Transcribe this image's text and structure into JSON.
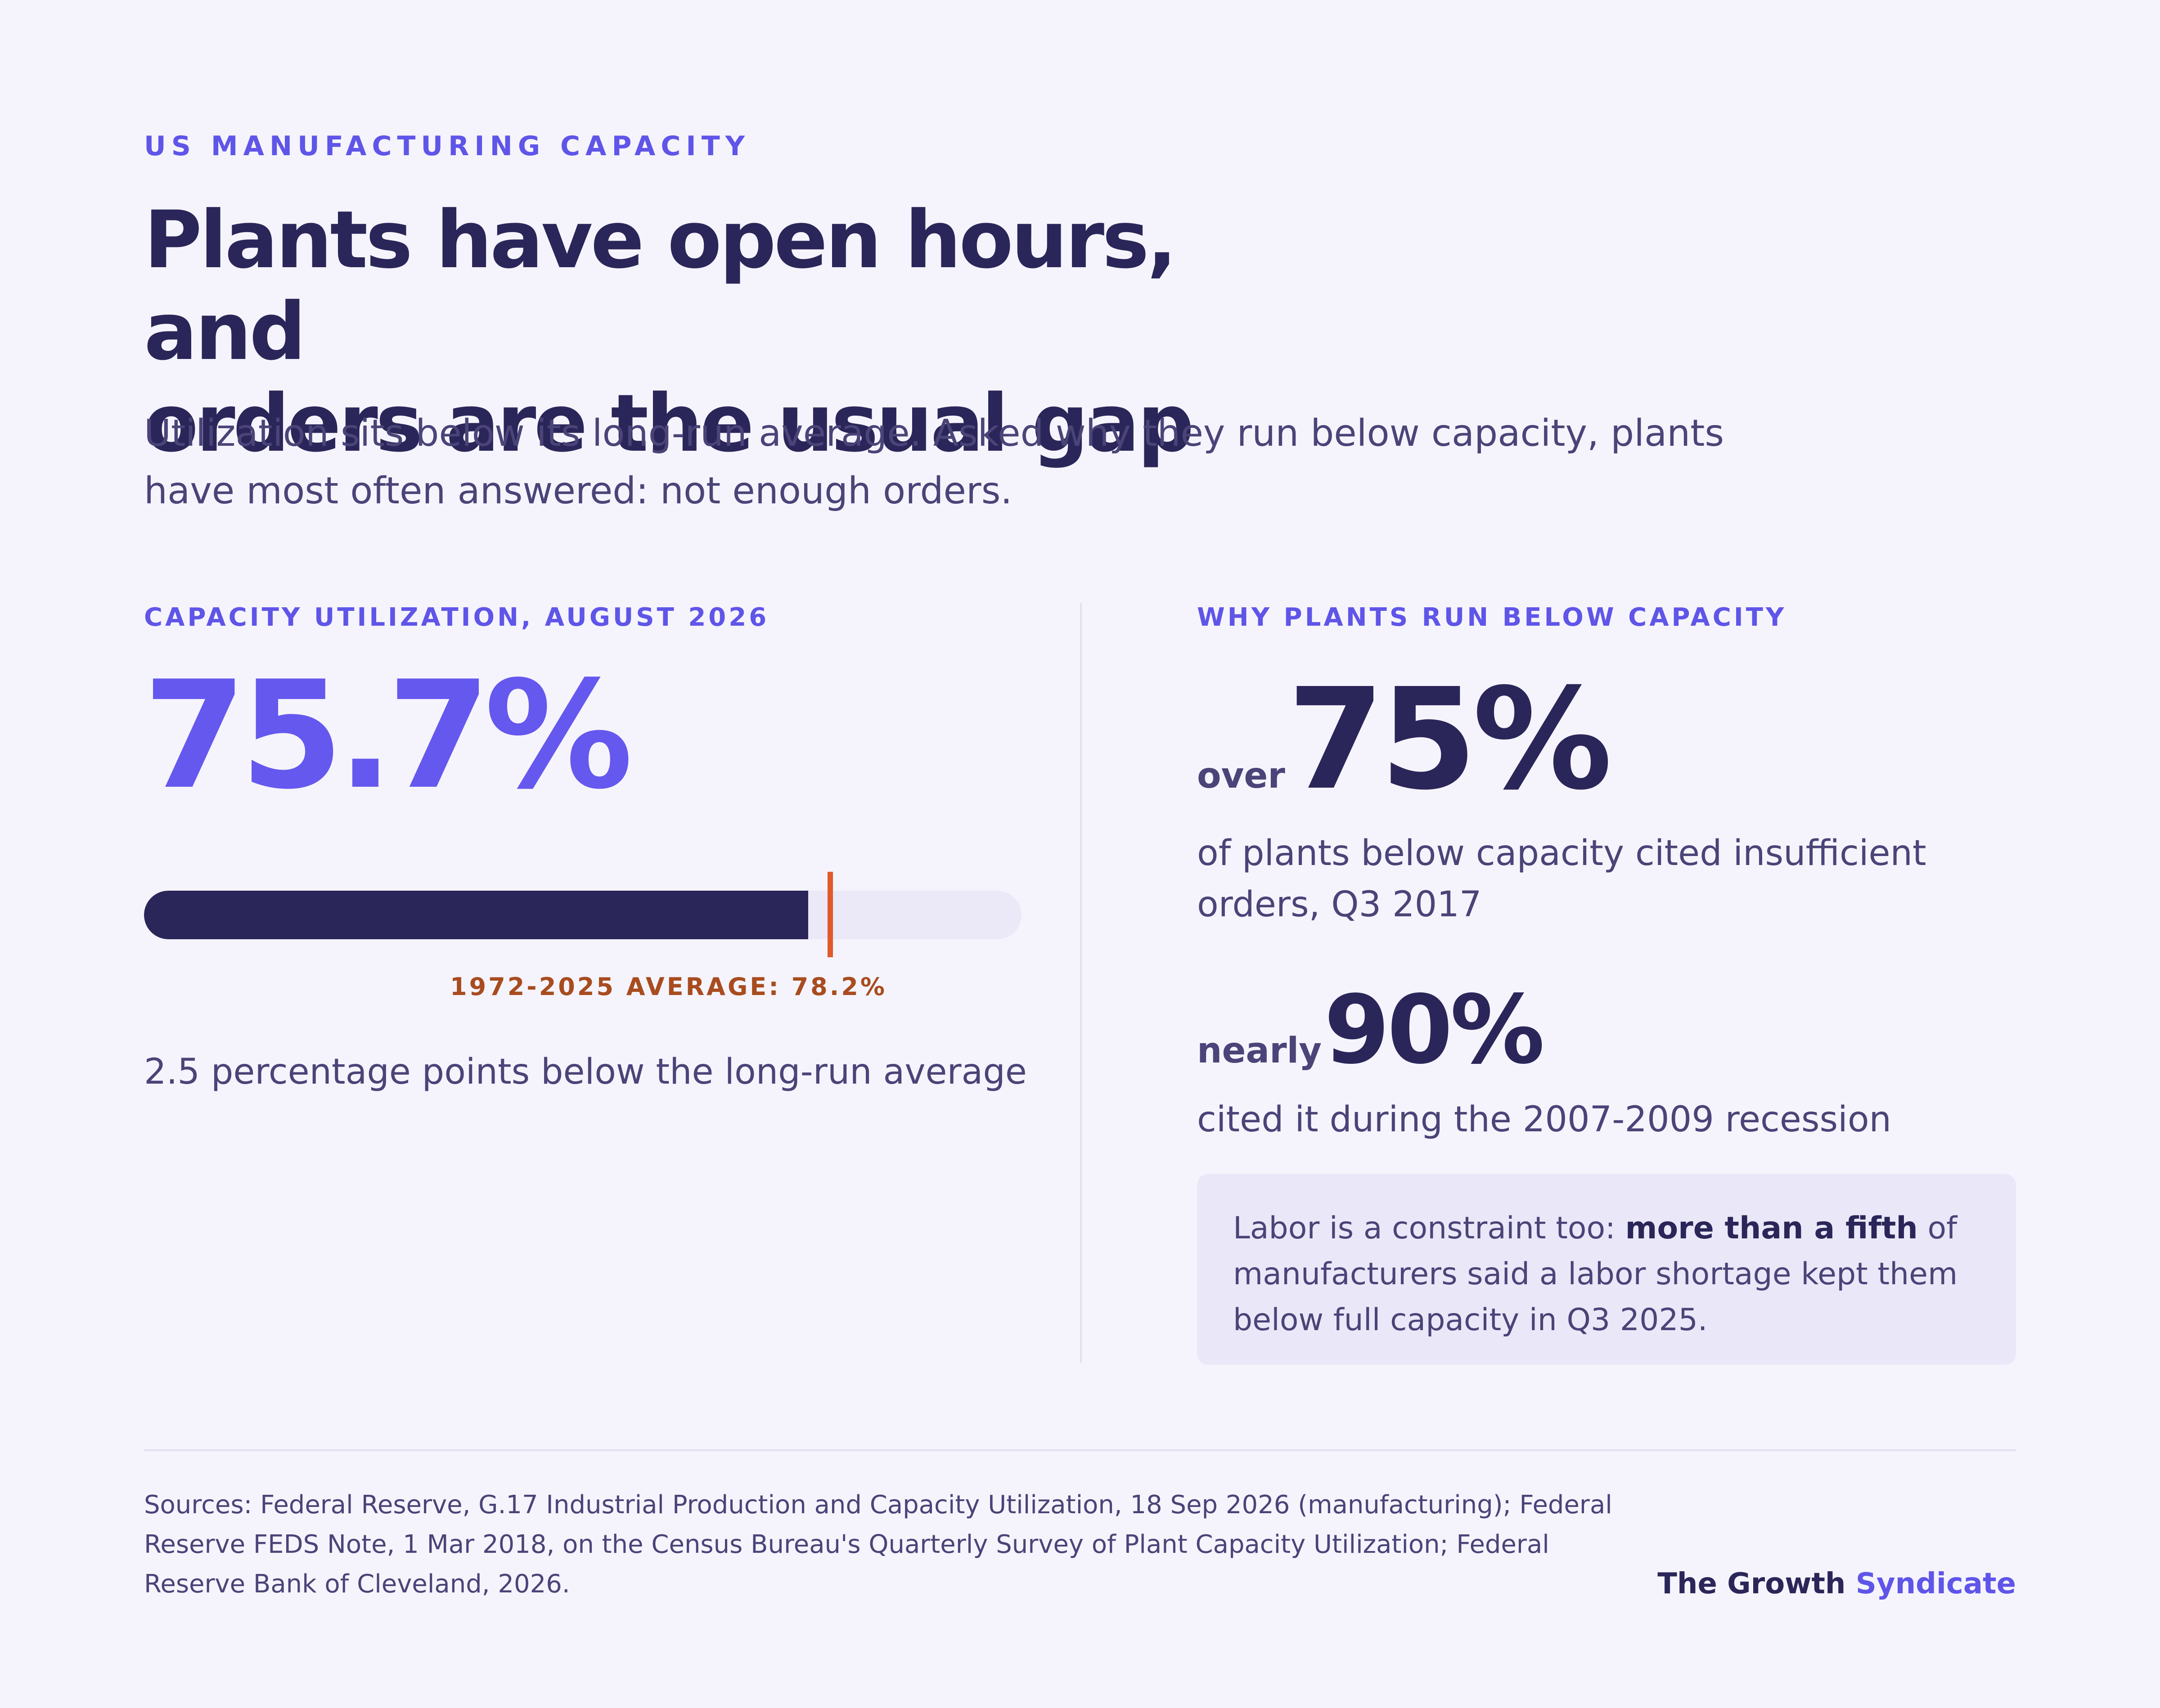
{
  "header": {
    "kicker": "US MANUFACTURING CAPACITY",
    "title_line1": "Plants have open hours, and",
    "title_line2": "orders are the usual gap",
    "subtitle": "Utilization sits below its long-run average. Asked why they run below capacity, plants have most often answered: not enough orders."
  },
  "left_panel": {
    "label": "CAPACITY UTILIZATION, AUGUST 2026",
    "big_value": "75.7%",
    "utilization_pct": 75.7,
    "average_pct": 78.2,
    "average_label": "1972-2025 AVERAGE: 78.2%",
    "note": "2.5 percentage points below the long-run average"
  },
  "right_panel": {
    "label": "WHY PLANTS RUN BELOW CAPACITY",
    "stat1": {
      "qualifier": "over",
      "value": "75%",
      "description": "of plants below capacity cited insufficient orders, Q3 2017"
    },
    "stat2": {
      "qualifier": "nearly",
      "value": "90%",
      "description": "cited it during the 2007-2009 recession"
    },
    "callout": {
      "before": "Labor is a constraint too: ",
      "emphasis": "more than a fifth",
      "after": " of manufacturers said a labor shortage kept them below full capacity in Q3 2025."
    }
  },
  "footer": {
    "sources": "Sources: Federal Reserve, G.17 Industrial Production and Capacity Utilization, 18 Sep 2026 (manufacturing); Federal Reserve FEDS Note, 1 Mar 2018, on the Census Bureau's Quarterly Survey of Plant Capacity Utilization; Federal Reserve Bank of Cleveland, 2026.",
    "brand_part1": "The Growth",
    "brand_part2": "Syndicate"
  },
  "colors": {
    "background": "#f5f4fc",
    "accent": "#5f55e8",
    "navy": "#2b2659",
    "average_marker": "#e05a2a"
  }
}
